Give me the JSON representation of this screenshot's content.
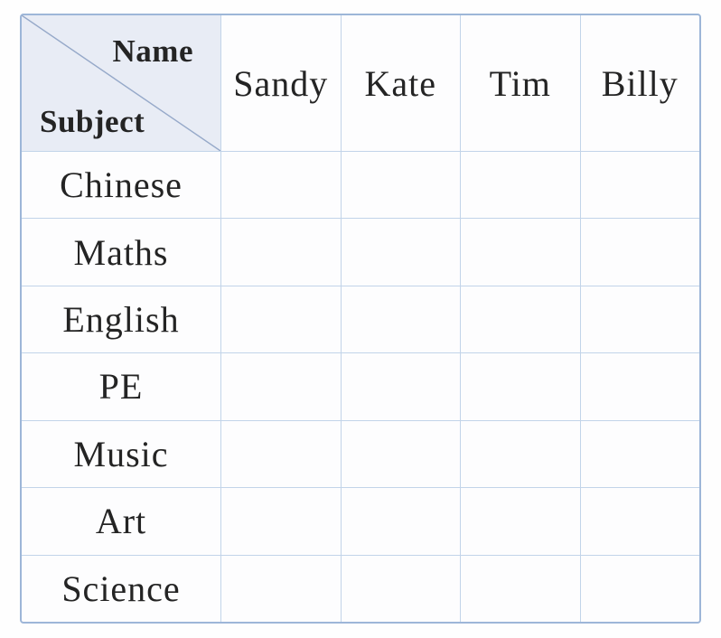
{
  "table": {
    "corner": {
      "top_label": "Name",
      "bottom_label": "Subject"
    },
    "columns": [
      "Sandy",
      "Kate",
      "Tim",
      "Billy"
    ],
    "rows": [
      "Chinese",
      "Maths",
      "English",
      "PE",
      "Music",
      "Art",
      "Science"
    ]
  },
  "colors": {
    "outer_border": "#9db6d8",
    "grid_line": "#c2d4e9",
    "corner_bg": "#e8ecf5",
    "diagonal_line": "#96a9c9",
    "text": "#242424",
    "page_bg": "#fefefe"
  }
}
